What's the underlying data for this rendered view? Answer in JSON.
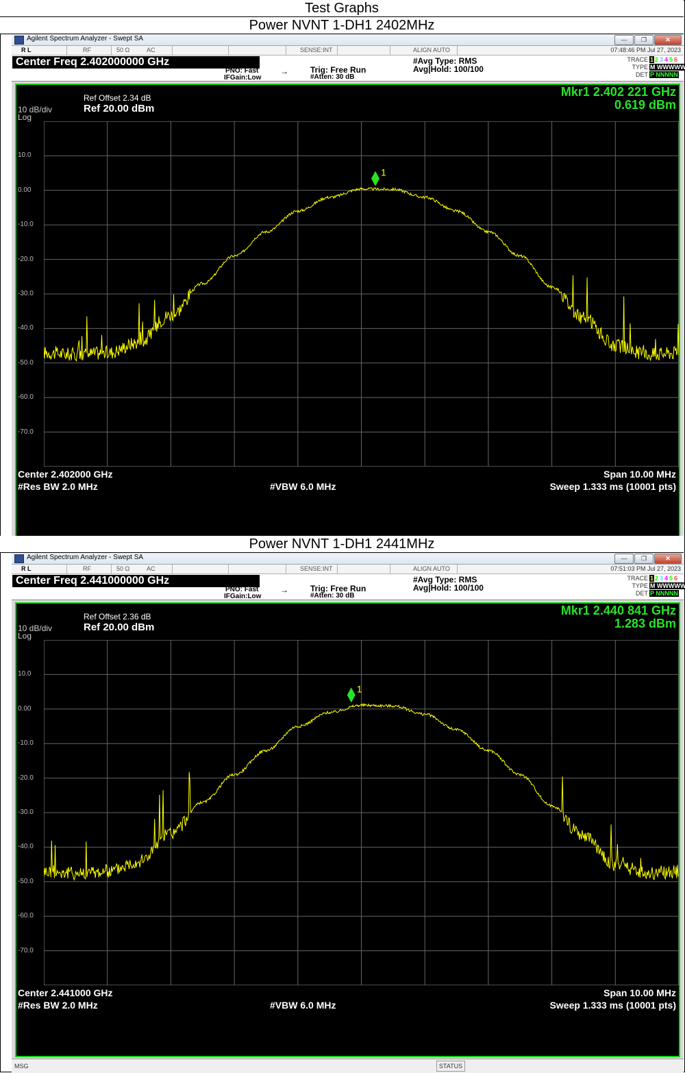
{
  "page": {
    "title": "Test Graphs"
  },
  "graphs": [
    {
      "caption": "Power NVNT 1-DH1 2402MHz",
      "window_title": "Agilent Spectrum Analyzer - Swept SA",
      "status_row": {
        "rl": "R L",
        "rf": "RF",
        "impedance": "50 Ω",
        "coupling": "AC",
        "sense": "SENSE:INT",
        "align": "ALIGN AUTO",
        "datetime": "07:48:46 PM Jul 27, 2023"
      },
      "center_freq_label": "Center Freq 2.402000000 GHz",
      "pno": "PNO: Fast",
      "ifgain": "IFGain:Low",
      "trig": "Trig: Free Run",
      "atten": "#Atten: 30 dB",
      "avg_type": "#Avg Type: RMS",
      "avg_hold": "Avg|Hold: 100/100",
      "trace_labels": {
        "trace": "TRACE",
        "type": "TYPE",
        "det": "DET"
      },
      "trace_values": {
        "nums": [
          "1",
          "2",
          "3",
          "4",
          "5",
          "6"
        ],
        "type": "M WWWWW",
        "det": "P NNNNN"
      },
      "ref_offset": "Ref Offset 2.34 dB",
      "scale": "10 dB/div",
      "ref_level": "Ref 20.00 dBm",
      "log": "Log",
      "marker_freq": "Mkr1 2.402 221 GHz",
      "marker_level": "0.619 dBm",
      "marker_label": "1",
      "y_ticks": [
        "10.0",
        "0.00",
        "-10.0",
        "-20.0",
        "-30.0",
        "-40.0",
        "-50.0",
        "-60.0",
        "-70.0"
      ],
      "center": "Center 2.402000 GHz",
      "span": "Span 10.00 MHz",
      "rbw": "#Res BW 2.0 MHz",
      "vbw": "#VBW 6.0 MHz",
      "sweep": "Sweep  1.333 ms (10001 pts)",
      "msg": "MSG",
      "status": "STATUS"
    },
    {
      "caption": "Power NVNT 1-DH1 2441MHz",
      "window_title": "Agilent Spectrum Analyzer - Swept SA",
      "status_row": {
        "rl": "R L",
        "rf": "RF",
        "impedance": "50 Ω",
        "coupling": "AC",
        "sense": "SENSE:INT",
        "align": "ALIGN AUTO",
        "datetime": "07:51:03 PM Jul 27, 2023"
      },
      "center_freq_label": "Center Freq 2.441000000 GHz",
      "pno": "PNO: Fast",
      "ifgain": "IFGain:Low",
      "trig": "Trig: Free Run",
      "atten": "#Atten: 30 dB",
      "avg_type": "#Avg Type: RMS",
      "avg_hold": "Avg|Hold: 100/100",
      "trace_labels": {
        "trace": "TRACE",
        "type": "TYPE",
        "det": "DET"
      },
      "trace_values": {
        "nums": [
          "1",
          "2",
          "3",
          "4",
          "5",
          "6"
        ],
        "type": "M WWWWW",
        "det": "P NNNNN"
      },
      "ref_offset": "Ref Offset 2.36 dB",
      "scale": "10 dB/div",
      "ref_level": "Ref 20.00 dBm",
      "log": "Log",
      "marker_freq": "Mkr1 2.440 841 GHz",
      "marker_level": "1.283 dBm",
      "marker_label": "1",
      "y_ticks": [
        "10.0",
        "0.00",
        "-10.0",
        "-20.0",
        "-30.0",
        "-40.0",
        "-50.0",
        "-60.0",
        "-70.0"
      ],
      "center": "Center 2.441000 GHz",
      "span": "Span 10.00 MHz",
      "rbw": "#Res BW 2.0 MHz",
      "vbw": "#VBW 6.0 MHz",
      "sweep": "Sweep  1.333 ms (10001 pts)",
      "msg": "MSG",
      "status": "STATUS"
    }
  ],
  "chart_data": [
    {
      "type": "line",
      "title": "",
      "x_range_ghz": [
        2.397,
        2.407
      ],
      "ylim": [
        -80,
        20
      ],
      "grid": true,
      "x": [
        2.397,
        2.3975,
        2.398,
        2.3985,
        2.399,
        2.3995,
        2.4,
        2.4005,
        2.401,
        2.4015,
        2.402,
        2.4025,
        2.403,
        2.4035,
        2.404,
        2.4045,
        2.405,
        2.4055,
        2.406,
        2.4065,
        2.407
      ],
      "values": [
        -47,
        -47.5,
        -47,
        -44,
        -36,
        -27,
        -19,
        -12,
        -6,
        -2,
        0.4,
        0.3,
        -2,
        -6,
        -12,
        -19,
        -28,
        -37,
        -45,
        -47.5,
        -47
      ],
      "marker": {
        "x": 2.402221,
        "y": 0.619,
        "label": "1"
      },
      "colors": {
        "trace": "#ffff00",
        "marker": "#27e327",
        "grid": "#666666"
      }
    },
    {
      "type": "line",
      "title": "",
      "x_range_ghz": [
        2.436,
        2.446
      ],
      "ylim": [
        -80,
        20
      ],
      "grid": true,
      "x": [
        2.436,
        2.4365,
        2.437,
        2.4375,
        2.438,
        2.4385,
        2.439,
        2.4395,
        2.44,
        2.4405,
        2.441,
        2.4415,
        2.442,
        2.4425,
        2.443,
        2.4435,
        2.444,
        2.4445,
        2.445,
        2.4455,
        2.446
      ],
      "values": [
        -47,
        -47.5,
        -47,
        -44,
        -36,
        -27,
        -19,
        -12,
        -5,
        -1,
        1.1,
        0.9,
        -1.5,
        -6,
        -12,
        -19,
        -28,
        -37,
        -45,
        -47.5,
        -47
      ],
      "marker": {
        "x": 2.440841,
        "y": 1.283,
        "label": "1"
      },
      "colors": {
        "trace": "#ffff00",
        "marker": "#27e327",
        "grid": "#666666"
      }
    }
  ]
}
